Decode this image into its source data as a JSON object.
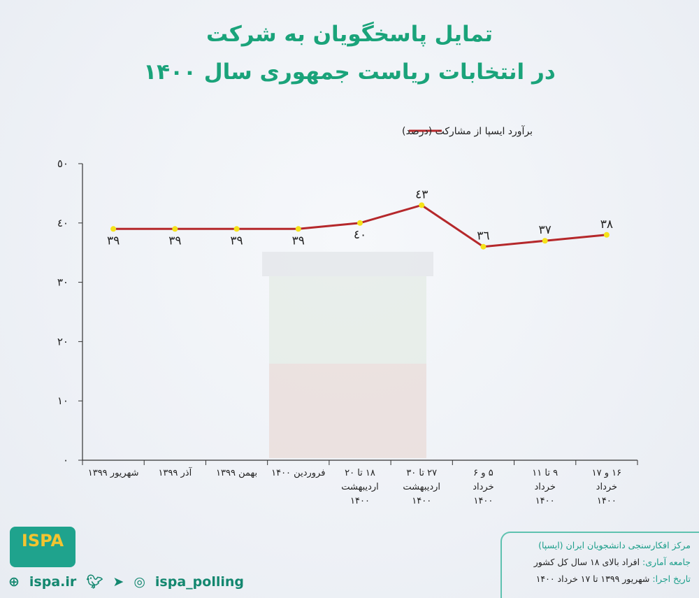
{
  "title": {
    "line1": "تمایل پاسخگویان به شرکت",
    "line2": "در انتخابات ریاست جمهوری سال ۱۴۰۰"
  },
  "chart_data": {
    "type": "line",
    "title": "تمایل پاسخگویان به شرکت در انتخابات ریاست جمهوری سال ۱۴۰۰",
    "categories": [
      "شهریور ۱۳۹۹",
      "آذر ۱۳۹۹",
      "بهمن ۱۳۹۹",
      "فروردین ۱۴۰۰",
      "۱۸ تا ۲۰ اردیبهشت ۱۴۰۰",
      "۲۷ تا ۳۰ اردیبهشت ۱۴۰۰",
      "۵ و ۶ خرداد ۱۴۰۰",
      "۹ تا ۱۱ خرداد ۱۴۰۰",
      "۱۶ و ۱۷ خرداد ۱۴۰۰"
    ],
    "category_lines": [
      [
        "شهریور ۱۳۹۹"
      ],
      [
        "آذر ۱۳۹۹"
      ],
      [
        "بهمن ۱۳۹۹"
      ],
      [
        "فروردین ۱۴۰۰"
      ],
      [
        "۱۸ تا ۲۰",
        "اردیبهشت",
        "۱۴۰۰"
      ],
      [
        "۲۷ تا ۳۰",
        "اردیبهشت",
        "۱۴۰۰"
      ],
      [
        "۵ و ۶",
        "خرداد",
        "۱۴۰۰"
      ],
      [
        "۹ تا ۱۱",
        "خرداد",
        "۱۴۰۰"
      ],
      [
        "۱۶ و ۱۷",
        "خرداد",
        "۱۴۰۰"
      ]
    ],
    "series": [
      {
        "name": "برآورد ایسپا از مشارکت (درصد)",
        "values": [
          39,
          39,
          39,
          39,
          40,
          43,
          36,
          37,
          38
        ],
        "labels": [
          "٣٩",
          "٣٩",
          "٣٩",
          "٣٩",
          "٤٠",
          "٤٣",
          "٣٦",
          "٣٧",
          "٣٨"
        ]
      }
    ],
    "ylim": [
      0,
      50
    ],
    "yticks": [
      0,
      10,
      20,
      30,
      40,
      50
    ],
    "ytick_labels": [
      "٠",
      "١٠",
      "٢٠",
      "٣٠",
      "٤٠",
      "٥٠"
    ],
    "legend": "top-center",
    "grid": false,
    "line_color": "#b5282b",
    "marker_color": "#f5e21a"
  },
  "footer": {
    "org": "مرکز افکارسنجی دانشجویان ایران (ایسپا)",
    "population_label": "جامعه آماری:",
    "population": "افراد بالای ۱۸ سال کل کشور",
    "date_label": "تاریخ اجرا:",
    "date": "شهریور ۱۳۹۹ تا ۱۷ خرداد ۱۴۰۰",
    "website": "ispa.ir",
    "handle": "ispa_polling",
    "logo_text": "ISPA"
  }
}
